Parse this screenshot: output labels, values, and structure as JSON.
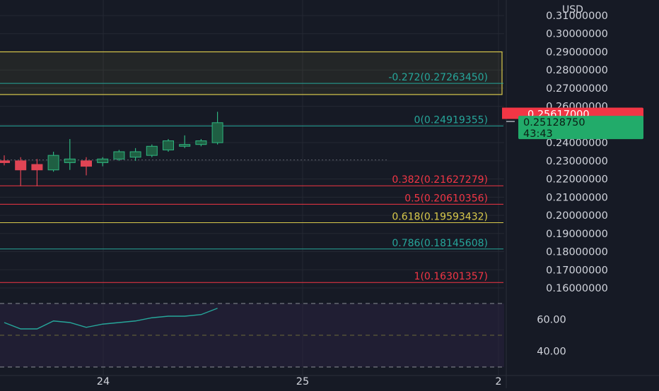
{
  "currency_label": "USD",
  "colors": {
    "background": "#161a25",
    "grid": "#242833",
    "text": "#d1d4dc",
    "up": "#089981",
    "down": "#f23645",
    "fib_teal": "#26a69a",
    "fib_red": "#f23645",
    "fib_yellow": "#d9c94b",
    "rsi_line": "#26a69a",
    "rsi_band": "#2a2240"
  },
  "price_axis": {
    "labels": [
      "0.31000000",
      "0.30000000",
      "0.29000000",
      "0.28000000",
      "0.27000000",
      "0.26000000",
      "0.25000000",
      "0.24000000",
      "0.23000000",
      "0.22000000",
      "0.21000000",
      "0.20000000",
      "0.19000000",
      "0.18000000",
      "0.17000000",
      "0.16000000"
    ],
    "range": [
      0.153,
      0.316
    ]
  },
  "time_axis": {
    "labels": [
      "24",
      "25",
      "2"
    ]
  },
  "price_badges": {
    "red": {
      "value": 0.25617,
      "label": "0.25617000"
    },
    "green": {
      "value": 0.2512875,
      "label": "0.25128750",
      "countdown": "43:43"
    }
  },
  "fib_levels": [
    {
      "ratio": "-0.272",
      "price": 0.2726345,
      "label": "-0.272(0.27263450)",
      "color": "#26a69a"
    },
    {
      "ratio": "0",
      "price": 0.24919355,
      "label": "0(0.24919355)",
      "color": "#26a69a"
    },
    {
      "ratio": "0.382",
      "price": 0.21627279,
      "label": "0.382(0.21627279)",
      "color": "#f23645"
    },
    {
      "ratio": "0.5",
      "price": 0.20610356,
      "label": "0.5(0.20610356)",
      "color": "#f23645"
    },
    {
      "ratio": "0.618",
      "price": 0.19593432,
      "label": "0.618(0.19593432)",
      "color": "#d9c94b"
    },
    {
      "ratio": "0.786",
      "price": 0.18145608,
      "label": "0.786(0.18145608)",
      "color": "#26a69a"
    },
    {
      "ratio": "1",
      "price": 0.16301357,
      "label": "1(0.16301357)",
      "color": "#f23645"
    }
  ],
  "fib_zone": {
    "top": 0.29,
    "bottom": 0.2665
  },
  "rsi": {
    "labels": [
      "60.00",
      "40.00"
    ],
    "range": [
      32,
      72
    ],
    "bands": [
      70,
      50,
      30
    ],
    "values": [
      58,
      54,
      54,
      59,
      58,
      55,
      57,
      58,
      59,
      61,
      62,
      62,
      63,
      67
    ]
  },
  "chart_data": {
    "type": "candlestick",
    "title": "",
    "series": [
      {
        "candles": [
          {
            "open": 0.23,
            "high": 0.233,
            "low": 0.2275,
            "close": 0.229
          },
          {
            "open": 0.23,
            "high": 0.232,
            "low": 0.216,
            "close": 0.225
          },
          {
            "open": 0.228,
            "high": 0.231,
            "low": 0.216,
            "close": 0.225
          },
          {
            "open": 0.225,
            "high": 0.235,
            "low": 0.224,
            "close": 0.233
          },
          {
            "open": 0.229,
            "high": 0.242,
            "low": 0.225,
            "close": 0.231
          },
          {
            "open": 0.23,
            "high": 0.232,
            "low": 0.222,
            "close": 0.227
          },
          {
            "open": 0.229,
            "high": 0.232,
            "low": 0.227,
            "close": 0.231
          },
          {
            "open": 0.231,
            "high": 0.236,
            "low": 0.23,
            "close": 0.235
          },
          {
            "open": 0.232,
            "high": 0.237,
            "low": 0.23,
            "close": 0.235
          },
          {
            "open": 0.233,
            "high": 0.239,
            "low": 0.232,
            "close": 0.238
          },
          {
            "open": 0.236,
            "high": 0.242,
            "low": 0.235,
            "close": 0.241
          },
          {
            "open": 0.238,
            "high": 0.244,
            "low": 0.237,
            "close": 0.239
          },
          {
            "open": 0.239,
            "high": 0.242,
            "low": 0.238,
            "close": 0.241
          },
          {
            "open": 0.24,
            "high": 0.257,
            "low": 0.239,
            "close": 0.251
          }
        ]
      }
    ],
    "last_close": 0.2512875,
    "ylim": [
      0.153,
      0.316
    ],
    "grid": true
  }
}
